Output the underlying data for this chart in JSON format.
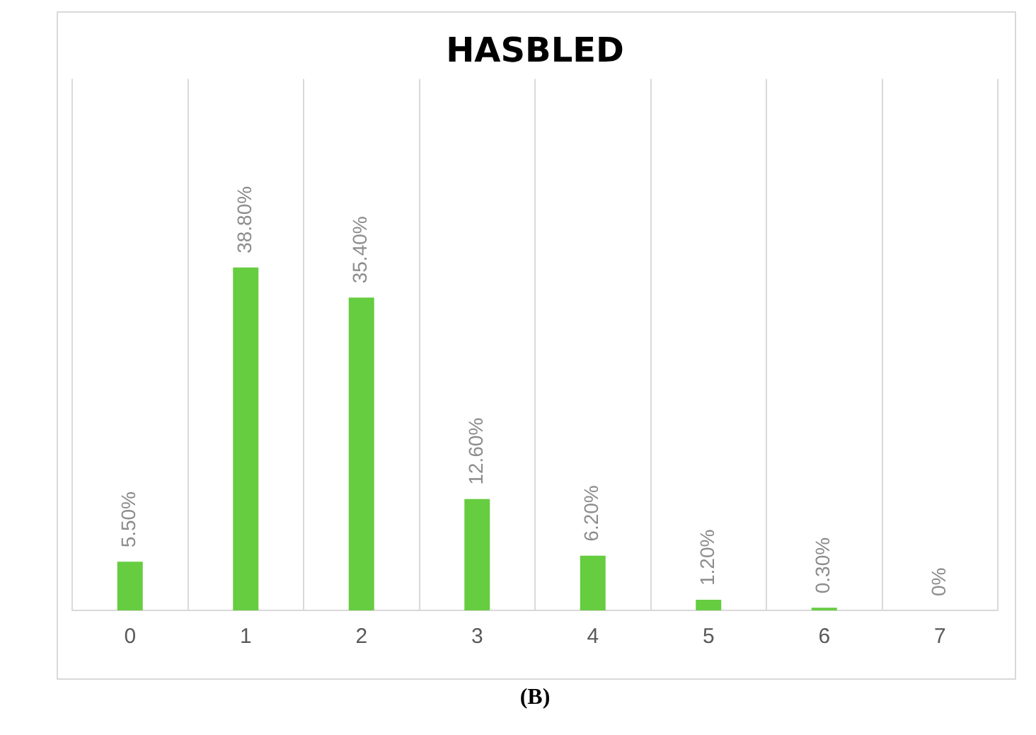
{
  "chart_data": {
    "type": "bar",
    "title": "HASBLED",
    "categories": [
      "0",
      "1",
      "2",
      "3",
      "4",
      "5",
      "6",
      "7"
    ],
    "values": [
      5.5,
      38.8,
      35.4,
      12.6,
      6.2,
      1.2,
      0.3,
      0
    ],
    "value_labels": [
      "5.50%",
      "38.80%",
      "35.40%",
      "12.60%",
      "6.20%",
      "1.20%",
      "0.30%",
      "0%"
    ],
    "color": "#66cc40",
    "grid": "x",
    "legend": false,
    "annotations": [
      "(B)"
    ]
  }
}
